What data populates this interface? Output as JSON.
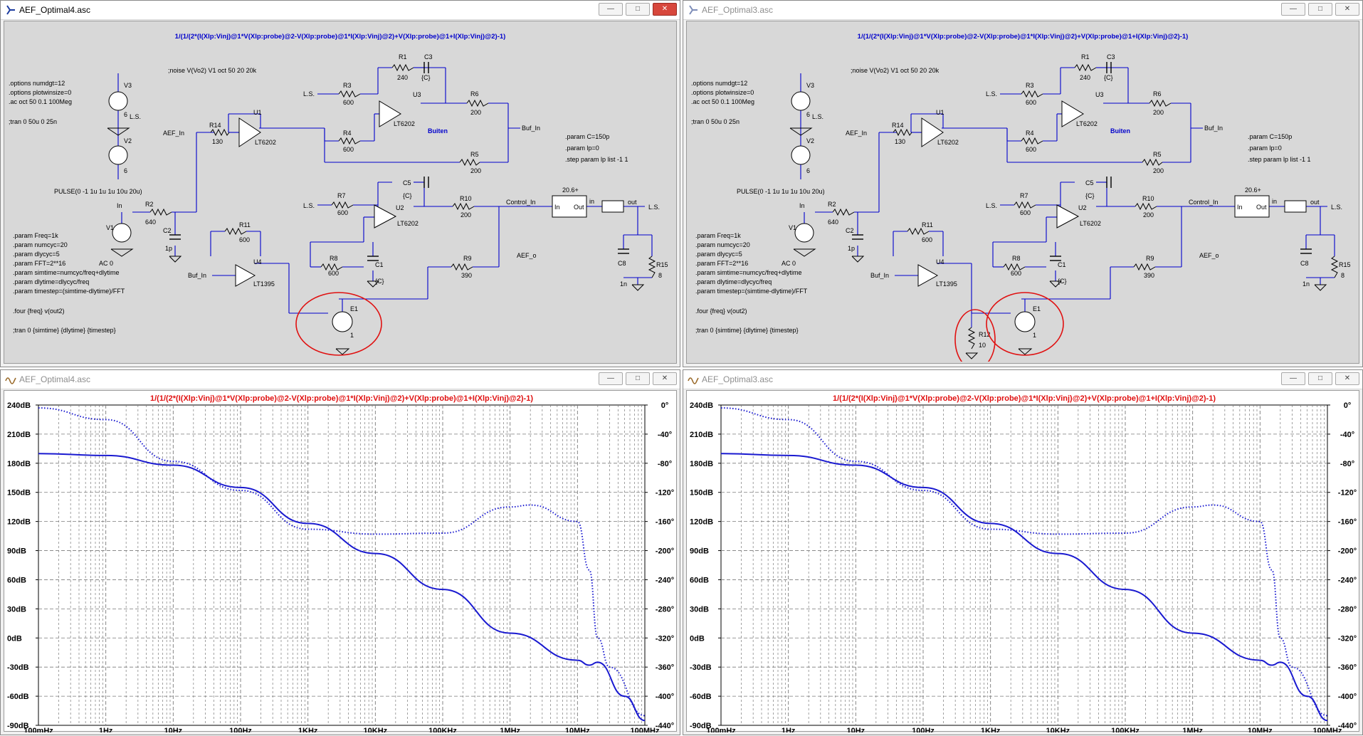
{
  "windows": {
    "schem_left": {
      "title": "AEF_Optimal4.asc"
    },
    "schem_right": {
      "title": "AEF_Optimal3.asc"
    },
    "plot_left": {
      "title": "AEF_Optimal4.asc"
    },
    "plot_right": {
      "title": "AEF_Optimal3.asc"
    }
  },
  "schematic": {
    "expr": "1/(1/(2*(I(Xlp:Vinj)@1*V(Xlp:probe)@2-V(Xlp:probe)@1*I(Xlp:Vinj)@2)+V(Xlp:probe)@1+I(Xlp:Vinj)@2)-1)",
    "directives": [
      ".options numdgt=12",
      ".options plotwinsize=0",
      ".ac oct 50 0.1 100Meg",
      ";tran 0 50u 0 25n"
    ],
    "noise": ";noise V(Vo2) V1 oct 50 20 20k",
    "param_c": [
      ".param C=150p",
      ".param lp=0",
      ".step param lp list -1 1"
    ],
    "params": [
      ".param Freq=1k",
      ".param numcyc=20",
      ".param dlycyc=5",
      ".param FFT=2**16",
      ".param simtime=numcyc/freq+dlytime",
      ".param dlytime=dlycyc/freq",
      ".param timestep=(simtime-dlytime)/FFT"
    ],
    "four": ".four {freq} v(out2)",
    "tran": ";tran 0 {simtime} {dlytime} {timestep}",
    "pulse": "PULSE(0 -1 1u 1u 1u 10u 20u)",
    "ac": "AC 0",
    "labels": {
      "v3": "V3",
      "v2": "V2",
      "v1": "V1",
      "six": "6",
      "ls": "L.S.",
      "in": "In",
      "aef_in": "AEF_In",
      "buf_in": "Buf_In",
      "control_in": "Control_In",
      "aef_o": "AEF_o",
      "out": "out",
      "buiten": "Buiten",
      "box_title": "20.6+",
      "box_in": "In",
      "box_out": "Out",
      "box2_in": "in"
    },
    "parts": {
      "r1": [
        "R1",
        "240"
      ],
      "r2": [
        "R2",
        "640"
      ],
      "r3": [
        "R3",
        "600"
      ],
      "r4": [
        "R4",
        "600"
      ],
      "r5": [
        "R5",
        "200"
      ],
      "r6": [
        "R6",
        "200"
      ],
      "r7": [
        "R7",
        "600"
      ],
      "r8": [
        "R8",
        "600"
      ],
      "r9": [
        "R9",
        "390"
      ],
      "r10": [
        "R10",
        "200"
      ],
      "r11": [
        "R11",
        "600"
      ],
      "r14": [
        "R14",
        "130"
      ],
      "r15": [
        "R15",
        "8"
      ],
      "r12": [
        "R12",
        "10"
      ],
      "c1": [
        "C1",
        "{C}"
      ],
      "c2": [
        "C2",
        "1p"
      ],
      "c3": [
        "C3",
        "{C}"
      ],
      "c5": [
        "C5",
        "{C}"
      ],
      "c8": [
        "C8",
        "1n"
      ],
      "u1": [
        "U1",
        "LT6202"
      ],
      "u2": [
        "U2",
        "LT6202"
      ],
      "u3": [
        "U3",
        "LT6202"
      ],
      "u4": [
        "U4",
        "LT1395"
      ],
      "e1": [
        "E1",
        "1"
      ]
    }
  },
  "plot": {
    "title": "1/(1/(2*(I(Xlp:Vinj)@1*V(Xlp:probe)@2-V(Xlp:probe)@1*I(Xlp:Vinj)@2)+V(Xlp:probe)@1+I(Xlp:Vinj)@2)-1)",
    "y_left_ticks": [
      "240dB",
      "210dB",
      "180dB",
      "150dB",
      "120dB",
      "90dB",
      "60dB",
      "30dB",
      "0dB",
      "-30dB",
      "-60dB",
      "-90dB"
    ],
    "y_right_ticks": [
      "0°",
      "-40°",
      "-80°",
      "-120°",
      "-160°",
      "-200°",
      "-240°",
      "-280°",
      "-320°",
      "-360°",
      "-400°",
      "-440°"
    ],
    "x_ticks": [
      "100mHz",
      "1Hz",
      "10Hz",
      "100Hz",
      "1KHz",
      "10KHz",
      "100KHz",
      "1MHz",
      "10MHz",
      "100MHz"
    ],
    "colors": {
      "trace": "#1a1ad0",
      "title": "#e01010",
      "grid": "#7a7a7a"
    }
  },
  "chart_data": [
    {
      "type": "line",
      "title": "1/(1/(2*(I(Xlp:Vinj)@1*V(Xlp:probe)@2-V(Xlp:probe)@1*I(Xlp:Vinj)@2)+V(Xlp:probe)@1+I(Xlp:Vinj)@2)-1)",
      "x_scale": "log",
      "x_unit": "Hz",
      "xlim": [
        0.1,
        100000000
      ],
      "ylim_left": [
        -90,
        240
      ],
      "ylim_right": [
        -440,
        0
      ],
      "grid": true,
      "series": [
        {
          "line_style": "solid",
          "axis": "left",
          "x": [
            0.1,
            1,
            10,
            100,
            1000,
            10000,
            100000,
            1000000,
            10000000,
            15000000,
            20000000,
            50000000,
            100000000
          ],
          "values": [
            190,
            188,
            178,
            155,
            118,
            87,
            50,
            5,
            -23,
            -28,
            -25,
            -60,
            -85
          ]
        },
        {
          "line_style": "dotted",
          "axis": "left",
          "x": [
            0.1,
            1,
            10,
            100,
            1000,
            10000,
            100000,
            1000000,
            2000000,
            10000000,
            15000000,
            20000000,
            30000000,
            100000000
          ],
          "values": [
            237,
            225,
            182,
            152,
            112,
            107,
            108,
            135,
            137,
            120,
            70,
            0,
            -30,
            -80
          ]
        }
      ]
    },
    {
      "type": "line",
      "title": "1/(1/(2*(I(Xlp:Vinj)@1*V(Xlp:probe)@2-V(Xlp:probe)@1*I(Xlp:Vinj)@2)+V(Xlp:probe)@1+I(Xlp:Vinj)@2)-1)",
      "x_scale": "log",
      "x_unit": "Hz",
      "xlim": [
        0.1,
        100000000
      ],
      "ylim_left": [
        -90,
        240
      ],
      "ylim_right": [
        -440,
        0
      ],
      "grid": true,
      "series": [
        {
          "line_style": "solid",
          "axis": "left",
          "x": [
            0.1,
            1,
            10,
            100,
            1000,
            10000,
            100000,
            1000000,
            10000000,
            15000000,
            20000000,
            50000000,
            100000000
          ],
          "values": [
            190,
            188,
            178,
            155,
            118,
            87,
            50,
            5,
            -23,
            -28,
            -25,
            -60,
            -85
          ]
        },
        {
          "line_style": "dotted",
          "axis": "left",
          "x": [
            0.1,
            1,
            10,
            100,
            1000,
            10000,
            100000,
            1000000,
            2000000,
            10000000,
            15000000,
            20000000,
            30000000,
            100000000
          ],
          "values": [
            237,
            225,
            182,
            152,
            112,
            107,
            108,
            135,
            137,
            120,
            70,
            0,
            -30,
            -80
          ]
        }
      ]
    }
  ]
}
